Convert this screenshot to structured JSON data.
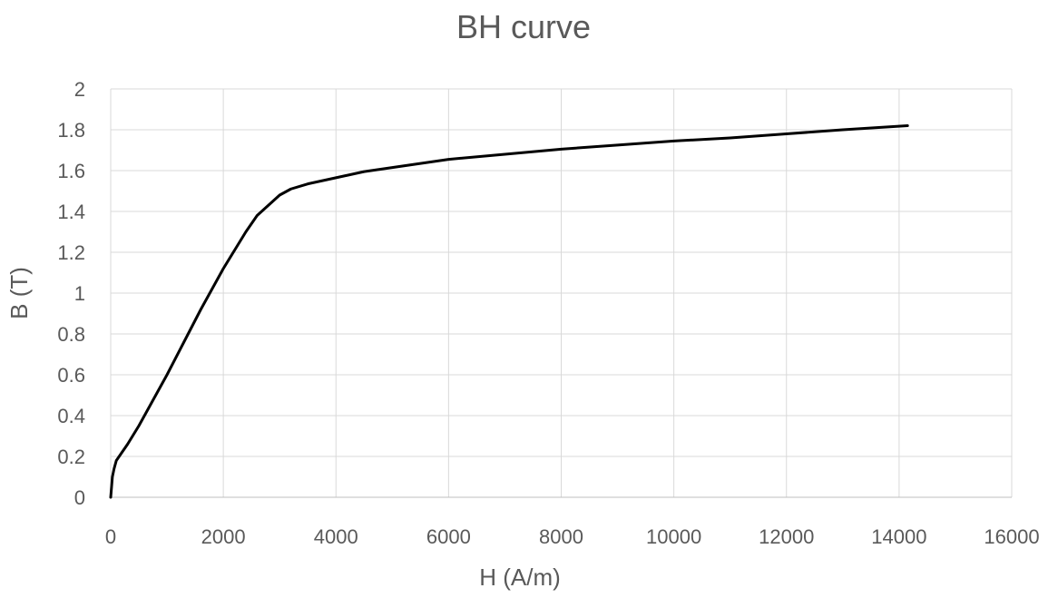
{
  "chart_data": {
    "type": "line",
    "title": "BH curve",
    "xlabel": "H (A/m)",
    "ylabel": "B (T)",
    "xlim": [
      0,
      16000
    ],
    "ylim": [
      0,
      2
    ],
    "x_ticks": [
      "0",
      "2000",
      "4000",
      "6000",
      "8000",
      "10000",
      "12000",
      "14000",
      "16000"
    ],
    "y_ticks": [
      "0",
      "0.2",
      "0.4",
      "0.6",
      "0.8",
      "1",
      "1.2",
      "1.4",
      "1.6",
      "1.8",
      "2"
    ],
    "grid": true,
    "legend": "none",
    "series": [
      {
        "color": "#000000",
        "x": [
          0,
          30,
          60,
          100,
          150,
          300,
          500,
          700,
          1000,
          1300,
          1600,
          1800,
          2000,
          2200,
          2400,
          2600,
          2800,
          3000,
          3200,
          3500,
          4000,
          4500,
          5000,
          6000,
          7000,
          8000,
          9000,
          10000,
          11000,
          12000,
          13000,
          14150
        ],
        "y": [
          0,
          0.1,
          0.14,
          0.18,
          0.2,
          0.26,
          0.35,
          0.45,
          0.6,
          0.76,
          0.92,
          1.02,
          1.12,
          1.21,
          1.3,
          1.38,
          1.43,
          1.48,
          1.51,
          1.535,
          1.565,
          1.595,
          1.615,
          1.655,
          1.68,
          1.705,
          1.725,
          1.745,
          1.76,
          1.78,
          1.8,
          1.82
        ]
      }
    ]
  }
}
